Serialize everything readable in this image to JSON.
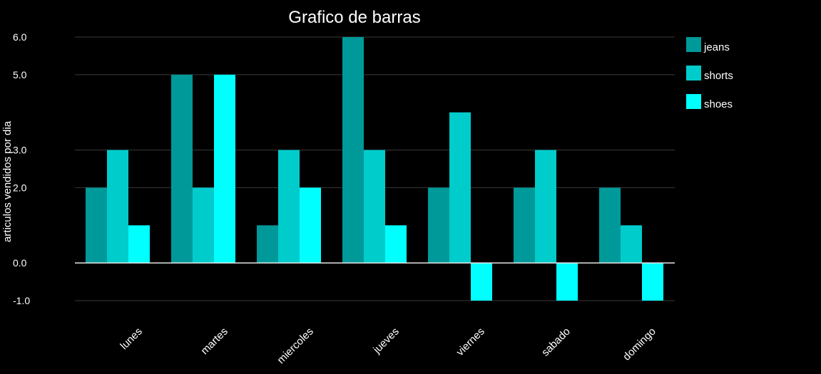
{
  "chart_data": {
    "type": "bar",
    "title": "Grafico de barras",
    "xlabel": "",
    "ylabel": "articulos vendidos por dia",
    "ylim": [
      -1,
      6
    ],
    "yticks": [
      -1.0,
      0.0,
      2.0,
      3.0,
      5.0,
      6.0
    ],
    "ytick_labels": [
      "-1.0",
      "0.0",
      "2.0",
      "3.0",
      "5.0",
      "6.0"
    ],
    "categories": [
      "lunes",
      "martes",
      "miercoles",
      "jueves",
      "viernes",
      "sabado",
      "domingo"
    ],
    "series": [
      {
        "name": "jeans",
        "color": "#009999",
        "values": [
          2,
          5,
          1,
          6,
          2,
          2,
          2
        ]
      },
      {
        "name": "shorts",
        "color": "#00cccc",
        "values": [
          3,
          2,
          3,
          3,
          4,
          3,
          1
        ]
      },
      {
        "name": "shoes",
        "color": "#00ffff",
        "values": [
          1,
          5,
          2,
          1,
          -1,
          -1,
          -1
        ]
      }
    ],
    "grid": true,
    "legend_position": "right",
    "background": "#000000"
  }
}
